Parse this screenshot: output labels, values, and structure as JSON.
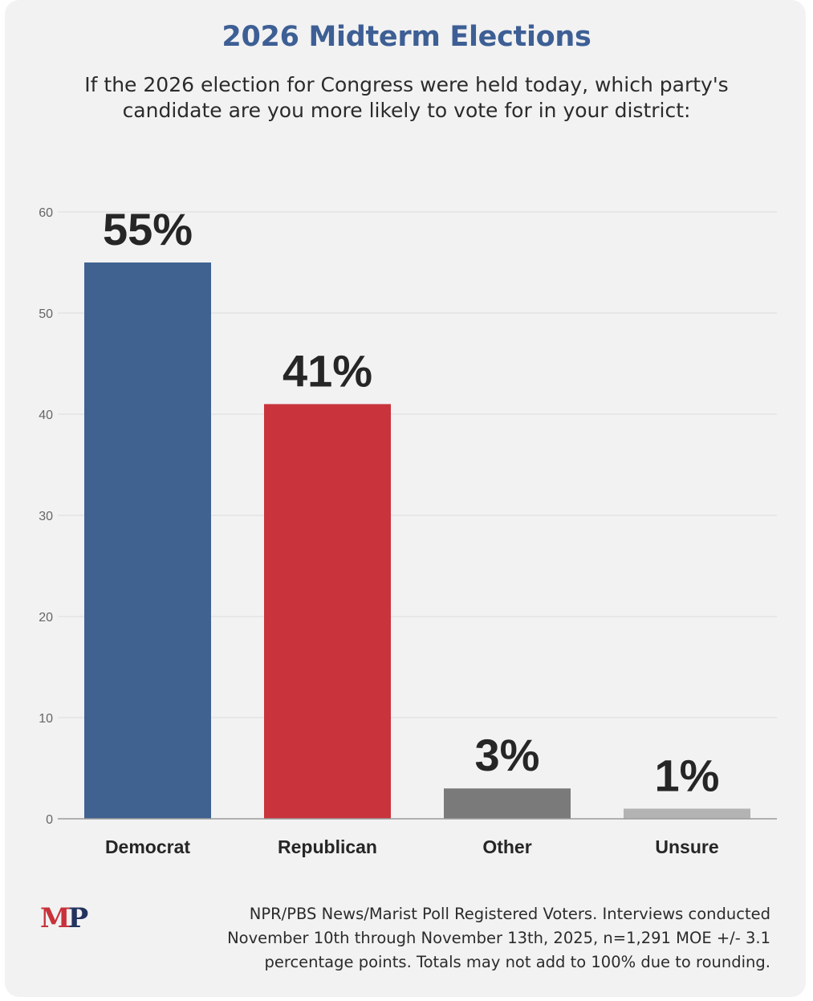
{
  "chart_data": {
    "type": "bar",
    "title": "2026 Midterm Elections",
    "subtitle_lines": [
      "If the 2026 election for Congress were held today, which party's",
      "candidate are you more likely to vote for in your district:"
    ],
    "categories": [
      "Democrat",
      "Republican",
      "Other",
      "Unsure"
    ],
    "values": [
      55,
      41,
      3,
      1
    ],
    "data_labels": [
      "55%",
      "41%",
      "3%",
      "1%"
    ],
    "colors": [
      "#3f6291",
      "#c9333c",
      "#7a7a7a",
      "#b3b3b3"
    ],
    "ylim": [
      0,
      60
    ],
    "yticks": [
      0,
      10,
      20,
      30,
      40,
      50,
      60
    ],
    "xlabel": "",
    "ylabel": "",
    "grid": true
  },
  "footer": {
    "logo_m": "M",
    "logo_p": "P",
    "source_lines": [
      "NPR/PBS News/Marist Poll Registered Voters. Interviews conducted",
      "November 10th through November 13th, 2025, n=1,291 MOE +/- 3.1",
      "percentage points. Totals may not add to 100% due to rounding."
    ]
  }
}
